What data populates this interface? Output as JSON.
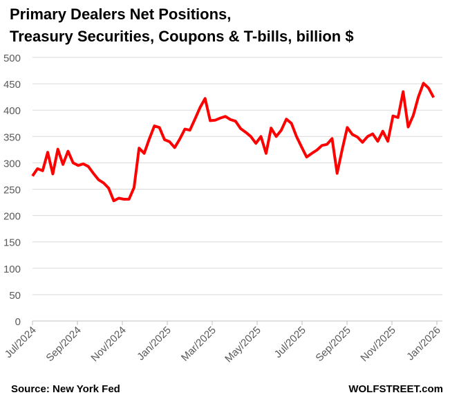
{
  "chart_data": {
    "type": "line",
    "title": [
      "Primary Dealers Net Positions,",
      "Treasury Securities, Coupons & T-bills, billion $"
    ],
    "xlabel": "",
    "ylabel": "",
    "ylim": [
      0,
      500
    ],
    "yticks": [
      0,
      50,
      100,
      150,
      200,
      250,
      300,
      350,
      400,
      450,
      500
    ],
    "x_unit": "months since Jul 2024",
    "xticks": [
      {
        "v": 0,
        "label": "Jul/2024"
      },
      {
        "v": 2,
        "label": "Sep/2024"
      },
      {
        "v": 4,
        "label": "Nov/2024"
      },
      {
        "v": 6,
        "label": "Jan/2025"
      },
      {
        "v": 8,
        "label": "Mar/2025"
      },
      {
        "v": 10,
        "label": "May/2025"
      },
      {
        "v": 12,
        "label": "Jul/2025"
      },
      {
        "v": 14,
        "label": "Sep/2025"
      },
      {
        "v": 16,
        "label": "Nov/2025"
      },
      {
        "v": 18,
        "label": "Jan/2026"
      }
    ],
    "x_start": 0,
    "x_step": 0.226,
    "grid": true,
    "series": [
      {
        "name": "Net positions",
        "color": "#ff0000",
        "values": [
          275,
          289,
          285,
          320,
          279,
          326,
          297,
          322,
          300,
          295,
          298,
          293,
          280,
          268,
          262,
          252,
          228,
          233,
          231,
          231,
          253,
          328,
          318,
          345,
          370,
          367,
          344,
          340,
          329,
          345,
          364,
          362,
          383,
          405,
          422,
          380,
          381,
          385,
          388,
          382,
          379,
          365,
          358,
          350,
          337,
          350,
          318,
          366,
          350,
          362,
          383,
          375,
          350,
          330,
          311,
          318,
          324,
          333,
          335,
          346,
          280,
          325,
          367,
          354,
          349,
          339,
          350,
          355,
          341,
          360,
          341,
          389,
          386,
          435,
          368,
          390,
          425,
          451,
          442,
          424
        ]
      }
    ]
  },
  "footer": {
    "source": "Source: New York Fed",
    "brand": "WOLFSTREET.com"
  }
}
